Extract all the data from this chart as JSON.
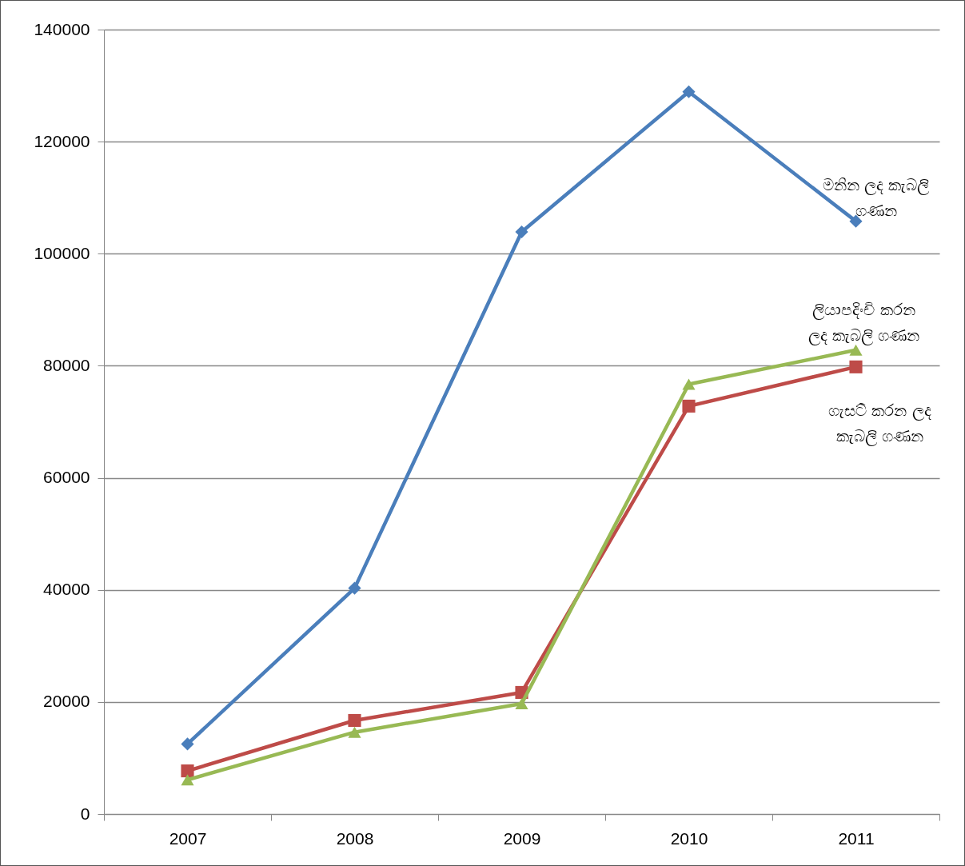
{
  "chart_data": {
    "type": "line",
    "categories": [
      "2007",
      "2008",
      "2009",
      "2010",
      "2011"
    ],
    "series": [
      {
        "name": "මනින ලද කැබලි ගණන",
        "color": "#4a7ebb",
        "marker": "diamond",
        "values": [
          12500,
          40300,
          103900,
          128900,
          105800
        ]
      },
      {
        "name": "ගැසට් කරන ලද කැබලි ගණන",
        "color": "#be4b48",
        "marker": "square",
        "values": [
          7700,
          16700,
          21700,
          72800,
          79800
        ]
      },
      {
        "name": "ලියාපදිංචි කරන ලද කැබලි ගණන",
        "color": "#98b954",
        "marker": "triangle",
        "values": [
          6100,
          14600,
          19700,
          76700,
          82800
        ]
      }
    ],
    "ylim": [
      0,
      140000
    ],
    "yticks": [
      0,
      20000,
      40000,
      60000,
      80000,
      100000,
      120000,
      140000
    ],
    "grid": "y",
    "line_style": "solid"
  }
}
